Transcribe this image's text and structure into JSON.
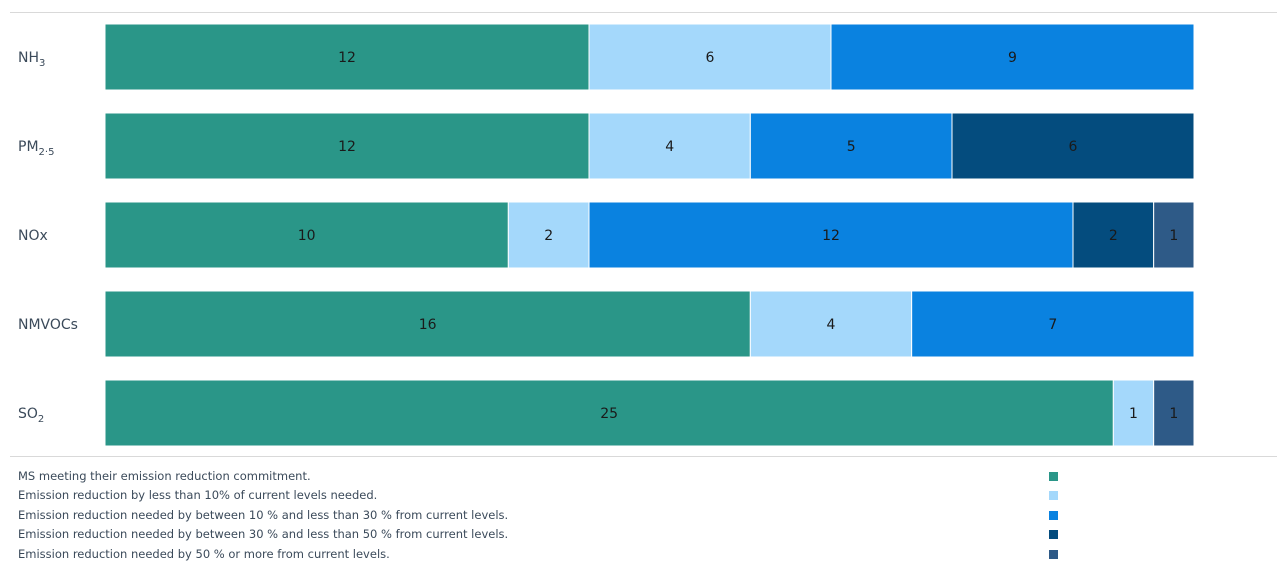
{
  "chart_data": {
    "type": "bar",
    "orientation": "horizontal",
    "stacked": true,
    "categories": [
      "NH3",
      "PM2.5",
      "NOx",
      "NMVOCs",
      "SO2"
    ],
    "category_labels": [
      {
        "base": "NH",
        "sub": "3"
      },
      {
        "base": "PM",
        "sub": "2·5"
      },
      {
        "base": "NOx",
        "sub": ""
      },
      {
        "base": "NMVOCs",
        "sub": ""
      },
      {
        "base": "SO",
        "sub": "2"
      }
    ],
    "series": [
      {
        "name": "MS meeting their emission reduction commitment.",
        "color": "#2a9688",
        "values": [
          12,
          12,
          10,
          16,
          25
        ]
      },
      {
        "name": "Emission reduction by less than 10% of current levels needed.",
        "color": "#a4d8fb",
        "values": [
          6,
          4,
          2,
          4,
          1
        ]
      },
      {
        "name": "Emission reduction needed by between 10 % and less than 30 % from current levels.",
        "color": "#0a82e0",
        "values": [
          9,
          5,
          12,
          7,
          0
        ]
      },
      {
        "name": "Emission reduction needed by between 30 % and less than 50 % from current levels.",
        "color": "#044c7e",
        "values": [
          0,
          6,
          2,
          0,
          0
        ]
      },
      {
        "name": "Emission reduction needed by 50 % or more from current levels.",
        "color": "#2e5a87",
        "values": [
          0,
          0,
          1,
          0,
          1
        ]
      }
    ],
    "xlim": [
      0,
      27
    ],
    "grid": false,
    "legend": "bottom",
    "title": "",
    "xlabel": "",
    "ylabel": ""
  }
}
